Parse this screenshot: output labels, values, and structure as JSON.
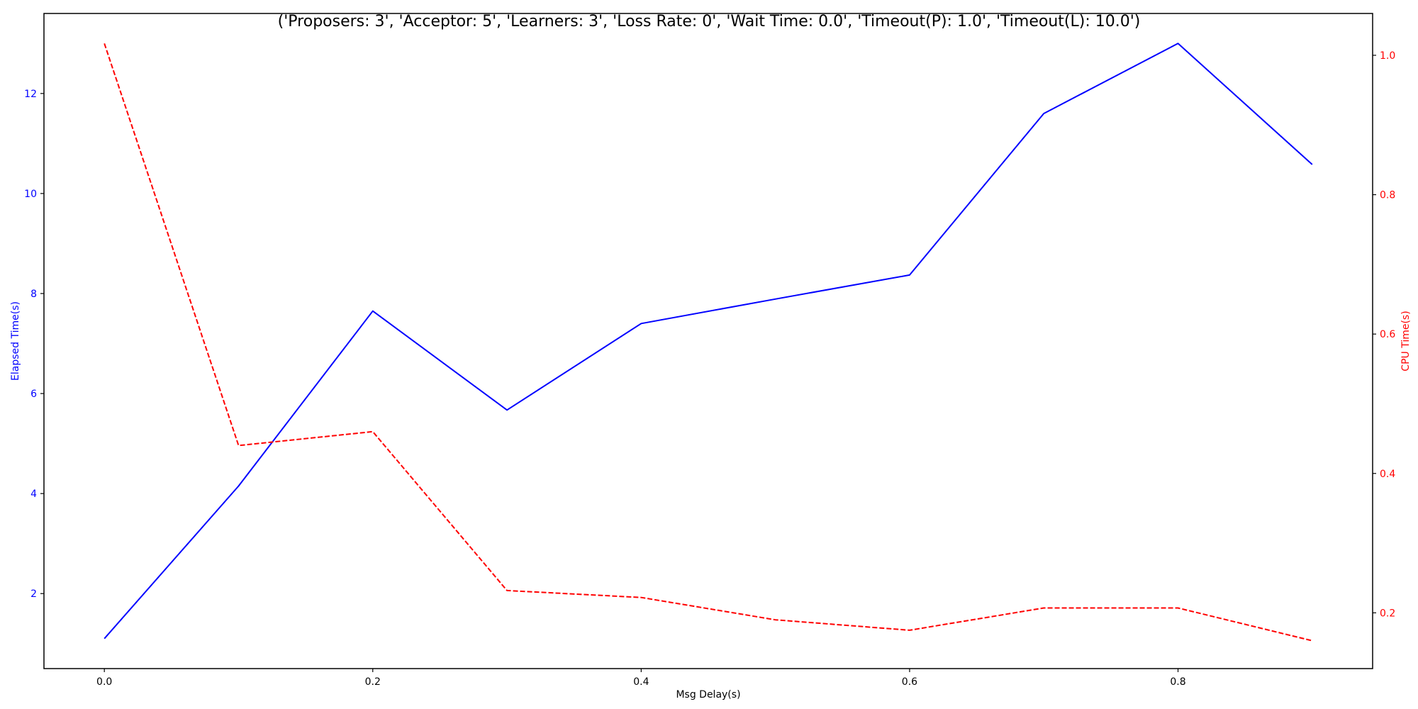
{
  "chart_data": {
    "type": "line",
    "title": "('Proposers: 3', 'Acceptor: 5', 'Learners: 3', 'Loss Rate: 0', 'Wait Time: 0.0', 'Timeout(P): 1.0', 'Timeout(L): 10.0')",
    "xlabel": "Msg Delay(s)",
    "ylabel_left": "Elapsed Time(s)",
    "ylabel_right": "CPU Time(s)",
    "x": [
      0.0,
      0.1,
      0.2,
      0.3,
      0.4,
      0.5,
      0.6,
      0.7,
      0.8,
      0.9
    ],
    "xlim": [
      -0.045,
      0.945
    ],
    "x_ticks": [
      0.0,
      0.2,
      0.4,
      0.6,
      0.8
    ],
    "x_tick_labels": [
      "0.0",
      "0.2",
      "0.4",
      "0.6",
      "0.8"
    ],
    "ylim_left": [
      0.5,
      13.6
    ],
    "y_ticks_left": [
      2,
      4,
      6,
      8,
      10,
      12
    ],
    "y_tick_labels_left": [
      "2",
      "4",
      "6",
      "8",
      "10",
      "12"
    ],
    "ylim_right": [
      0.12,
      1.06
    ],
    "y_ticks_right": [
      0.2,
      0.4,
      0.6,
      0.8,
      1.0
    ],
    "y_tick_labels_right": [
      "0.2",
      "0.4",
      "0.6",
      "0.8",
      "1.0"
    ],
    "grid": false,
    "series": [
      {
        "axis": "left",
        "color": "#0000ff",
        "style": "solid",
        "values": [
          1.1,
          4.15,
          7.65,
          5.67,
          7.4,
          7.89,
          8.37,
          11.6,
          13.0,
          10.58
        ]
      },
      {
        "axis": "right",
        "color": "#ff0000",
        "style": "dashed",
        "values": [
          1.017,
          0.44,
          0.46,
          0.232,
          0.222,
          0.19,
          0.175,
          0.207,
          0.207,
          0.16
        ]
      }
    ]
  }
}
